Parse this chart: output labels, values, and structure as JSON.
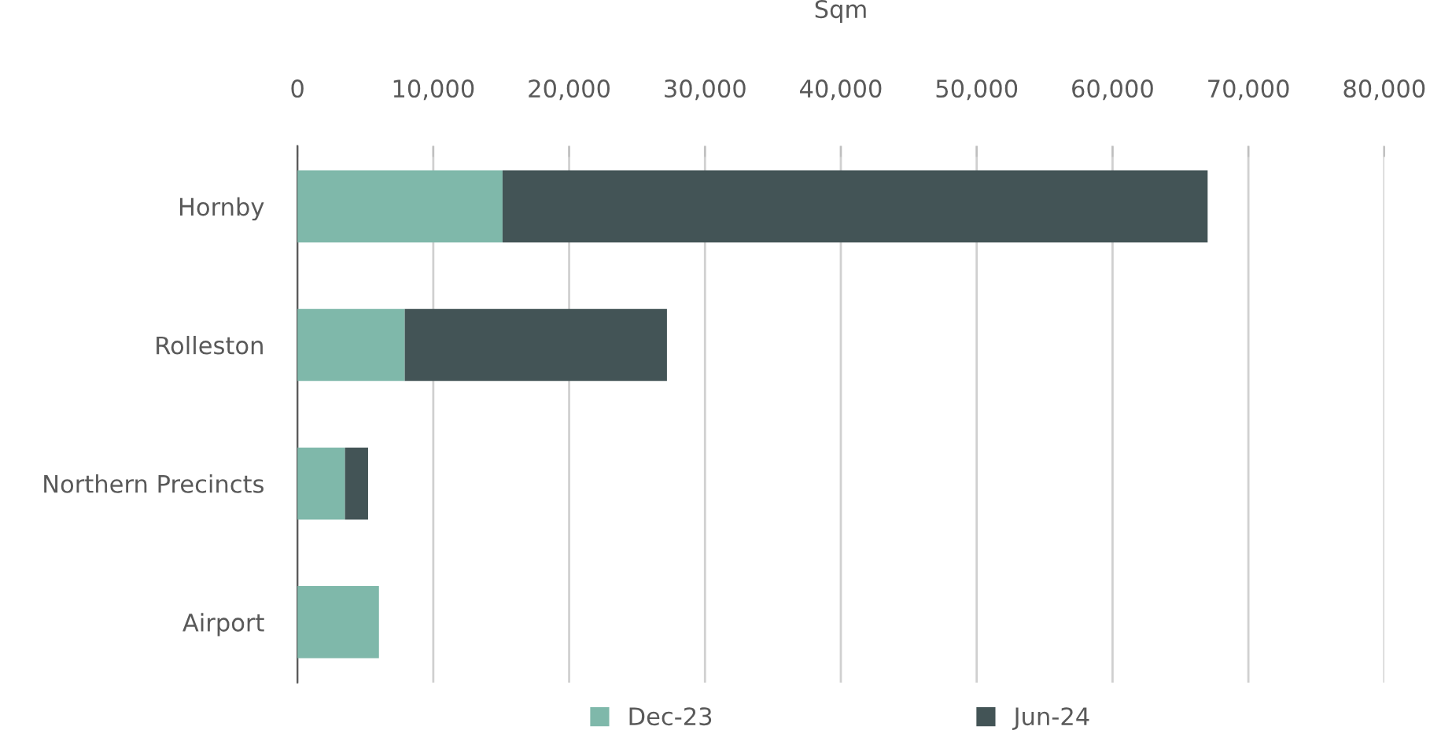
{
  "chart_data": {
    "type": "bar",
    "orientation": "horizontal",
    "stacked": true,
    "xlabel": "Sqm",
    "categories": [
      "Hornby",
      "Rolleston",
      "Northern Precincts",
      "Airport"
    ],
    "series": [
      {
        "name": "Dec-23",
        "color": "#7fb8aa",
        "values": [
          15100,
          7900,
          3500,
          6000
        ]
      },
      {
        "name": "Jun-24",
        "color": "#435456",
        "values": [
          51900,
          19300,
          1700,
          0
        ]
      }
    ],
    "xlim": [
      0,
      80000
    ],
    "xticks": [
      {
        "value": 0,
        "label": "0"
      },
      {
        "value": 10000,
        "label": "10,000"
      },
      {
        "value": 20000,
        "label": "20,000"
      },
      {
        "value": 30000,
        "label": "30,000"
      },
      {
        "value": 40000,
        "label": "40,000"
      },
      {
        "value": 50000,
        "label": "50,000"
      },
      {
        "value": 60000,
        "label": "60,000"
      },
      {
        "value": 70000,
        "label": "70,000"
      },
      {
        "value": 80000,
        "label": "80,000"
      }
    ],
    "grid": "x",
    "legend": "bottom"
  }
}
